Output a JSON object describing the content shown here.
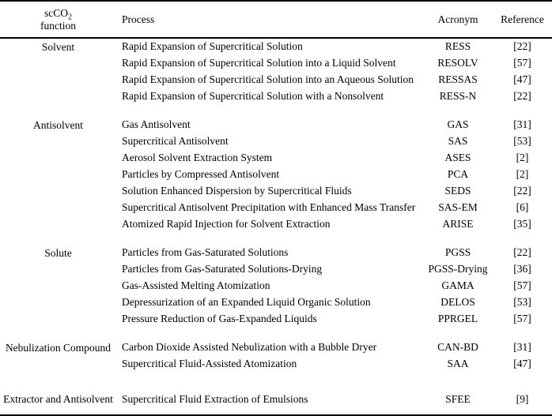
{
  "colors": {
    "text": "#000000",
    "background": "#ffffff",
    "border": "#000000"
  },
  "table": {
    "headers": {
      "function_line1": "scCO",
      "function_sub": "2",
      "function_line2": "function",
      "process": "Process",
      "acronym": "Acronym",
      "reference": "Reference"
    },
    "sections": [
      {
        "function": "Solvent",
        "rows": [
          {
            "process": "Rapid Expansion of Supercritical Solution",
            "acronym": "RESS",
            "reference": "[22]"
          },
          {
            "process": "Rapid Expansion of Supercritical Solution into a Liquid Solvent",
            "acronym": "RESOLV",
            "reference": "[57]"
          },
          {
            "process": "Rapid Expansion of Supercritical Solution into an Aqueous Solution",
            "acronym": "RESSAS",
            "reference": "[47]"
          },
          {
            "process": "Rapid Expansion of Supercritical Solution with a Nonsolvent",
            "acronym": "RESS-N",
            "reference": "[22]"
          }
        ]
      },
      {
        "function": "Antisolvent",
        "rows": [
          {
            "process": "Gas Antisolvent",
            "acronym": "GAS",
            "reference": "[31]"
          },
          {
            "process": "Supercritical Antisolvent",
            "acronym": "SAS",
            "reference": "[53]"
          },
          {
            "process": "Aerosol Solvent Extraction System",
            "acronym": "ASES",
            "reference": "[2]"
          },
          {
            "process": "Particles by Compressed Antisolvent",
            "acronym": "PCA",
            "reference": "[2]"
          },
          {
            "process": "Solution Enhanced Dispersion by Supercritical Fluids",
            "acronym": "SEDS",
            "reference": "[22]"
          },
          {
            "process": "Supercritical Antisolvent Precipitation with Enhanced Mass Transfer",
            "acronym": "SAS-EM",
            "reference": "[6]"
          },
          {
            "process": "Atomized Rapid Injection for Solvent Extraction",
            "acronym": "ARISE",
            "reference": "[35]"
          }
        ]
      },
      {
        "function": "Solute",
        "rows": [
          {
            "process": "Particles from Gas-Saturated Solutions",
            "acronym": "PGSS",
            "reference": "[22]"
          },
          {
            "process": "Particles from Gas-Saturated Solutions-Drying",
            "acronym": "PGSS-Drying",
            "reference": "[36]"
          },
          {
            "process": "Gas-Assisted Melting Atomization",
            "acronym": "GAMA",
            "reference": "[57]"
          },
          {
            "process": "Depressurization of an Expanded Liquid Organic Solution",
            "acronym": "DELOS",
            "reference": "[53]"
          },
          {
            "process": "Pressure Reduction of Gas-Expanded Liquids",
            "acronym": "PPRGEL",
            "reference": "[57]"
          }
        ]
      },
      {
        "function": "Nebulization Compound",
        "rows": [
          {
            "process": "Carbon Dioxide Assisted Nebulization with a Bubble Dryer",
            "acronym": "CAN-BD",
            "reference": "[31]"
          },
          {
            "process": "Supercritical Fluid-Assisted Atomization",
            "acronym": "SAA",
            "reference": "[47]"
          }
        ]
      },
      {
        "function": "Extractor and Antisolvent",
        "rows": [
          {
            "process": "Supercritical Fluid Extraction of Emulsions",
            "acronym": "SFEE",
            "reference": "[9]"
          }
        ]
      }
    ]
  }
}
